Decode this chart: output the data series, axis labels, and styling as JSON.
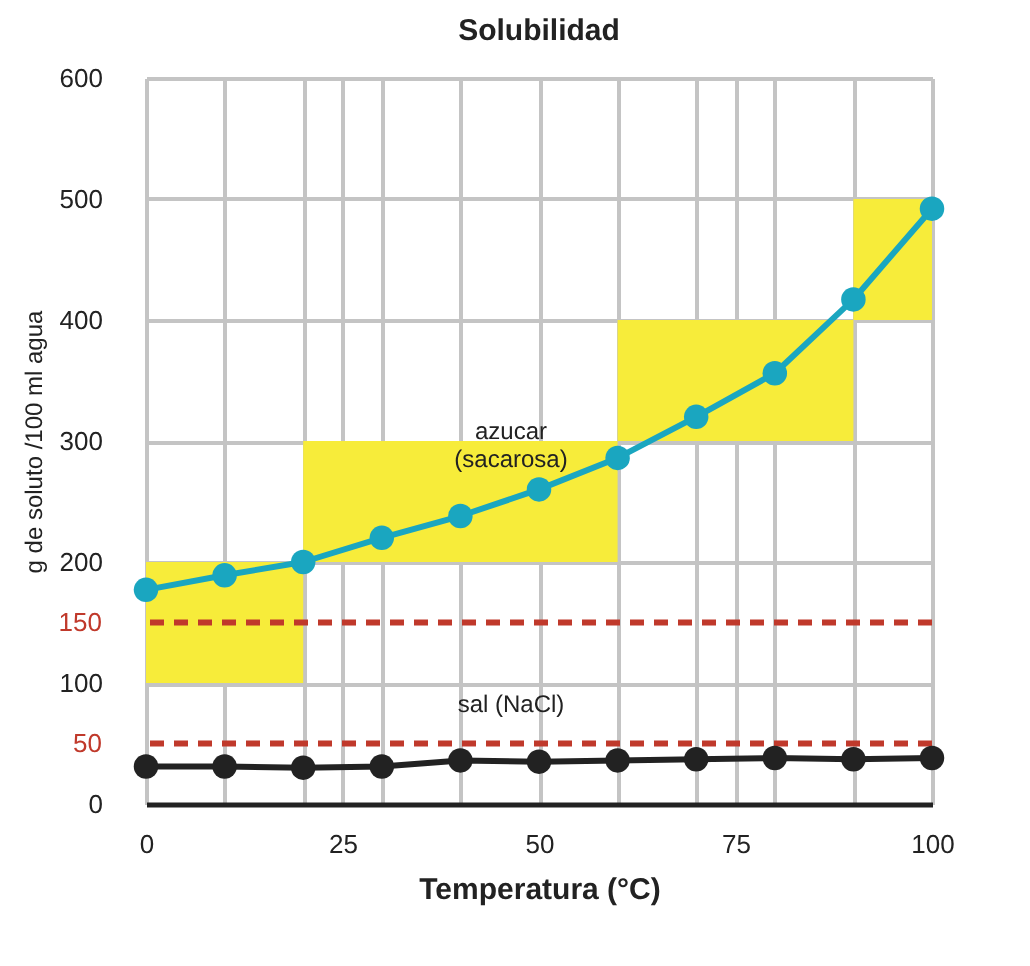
{
  "chart_data": {
    "type": "line",
    "title": "Solubilidad",
    "xlabel": "Temperatura (°C)",
    "ylabel": "g de soluto /100 ml agua",
    "x": [
      0,
      10,
      20,
      30,
      40,
      50,
      60,
      70,
      80,
      90,
      100
    ],
    "series": [
      {
        "type": "bar",
        "color": "#f7ec3a",
        "x": [
          10,
          40,
          75,
          95
        ],
        "base": [
          100,
          200,
          300,
          400
        ],
        "values": [
          100,
          100,
          100,
          100
        ]
      },
      {
        "name": "azucar\n(sacarosa)",
        "color": "#1aa6c0",
        "values": [
          177,
          189,
          200,
          220,
          238,
          260,
          286,
          320,
          356,
          417,
          492
        ]
      },
      {
        "name": "sal (NaCl)",
        "color": "#222222",
        "values": [
          31,
          31,
          30,
          31,
          36,
          35,
          36,
          37,
          38,
          37,
          38
        ]
      }
    ],
    "ref_lines": [
      {
        "axis": "y",
        "value": 150,
        "label": "150",
        "color": "#c0392b",
        "line_style": "dashed"
      },
      {
        "axis": "y",
        "value": 50,
        "label": "50",
        "color": "#c0392b",
        "line_style": "dashed"
      }
    ],
    "xlim": [
      0,
      100
    ],
    "xticks": [
      0,
      {
        "value": 10,
        "label": null
      },
      {
        "value": 20,
        "label": null
      },
      25,
      {
        "value": 30,
        "label": null
      },
      {
        "value": 40,
        "label": null
      },
      50,
      {
        "value": 60,
        "label": null
      },
      {
        "value": 70,
        "label": null
      },
      75,
      {
        "value": 80,
        "label": null
      },
      {
        "value": 90,
        "label": null
      },
      100
    ],
    "ylim": [
      0,
      600
    ],
    "yticks": [
      0,
      100,
      200,
      300,
      400,
      500,
      600
    ],
    "grid": true,
    "marker": "circle",
    "line_style": "solid"
  }
}
